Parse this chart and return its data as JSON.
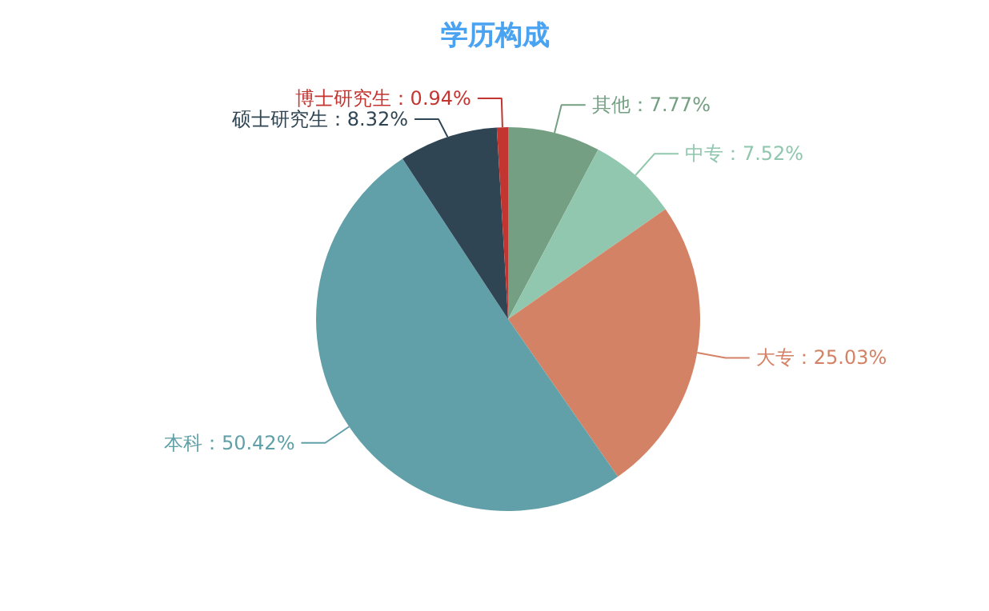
{
  "chart_data": {
    "type": "pie",
    "title": "学历构成",
    "categories": [
      "其他",
      "中专",
      "大专",
      "本科",
      "硕士研究生",
      "博士研究生"
    ],
    "values": [
      7.77,
      7.52,
      25.03,
      50.42,
      8.32,
      0.94
    ],
    "value_labels": [
      "7.77%",
      "7.52%",
      "25.03%",
      "50.42%",
      "8.32%",
      "0.94%"
    ],
    "colors": [
      "#749f83",
      "#91c7ae",
      "#d48265",
      "#61a0a8",
      "#2f4554",
      "#c23531"
    ]
  }
}
